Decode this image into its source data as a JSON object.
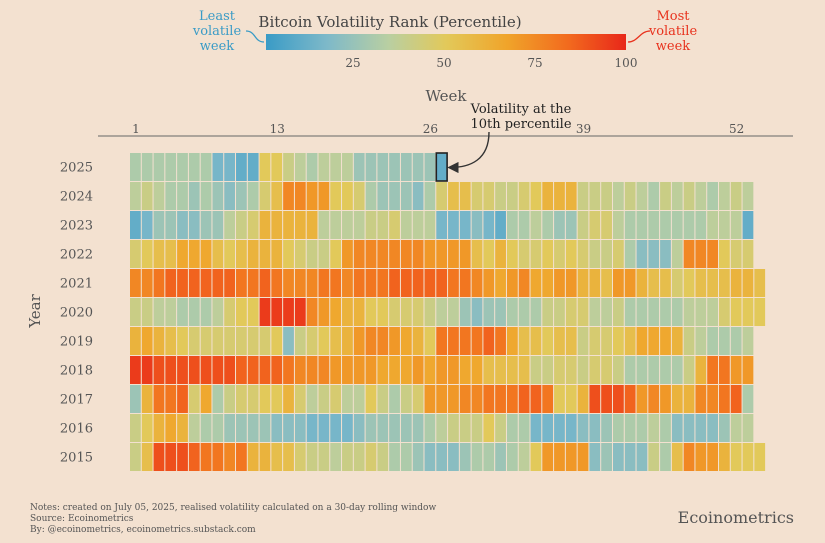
{
  "colors": {
    "background": "#f3e1d0",
    "least_label": "#3a9bc6",
    "most_label": "#e8321d",
    "axis_text": "#555555",
    "cell_border": "#f3e1d0",
    "scale": [
      "#3a9bc6",
      "#7eb9c9",
      "#b9cfa2",
      "#e2c95a",
      "#f0a42a",
      "#f26a1e",
      "#e8271a"
    ]
  },
  "legend": {
    "title": "Bitcoin Volatility Rank (Percentile)",
    "least_label_line1": "Least",
    "least_label_line2": "volatile",
    "least_label_line3": "week",
    "most_label_line1": "Most",
    "most_label_line2": "volatile",
    "most_label_line3": "week",
    "ticks": [
      "25",
      "50",
      "75",
      "100"
    ]
  },
  "annotation": {
    "line1": "Volatility at the",
    "line2": "10th percentile",
    "year": "2025",
    "week": 27
  },
  "footer": {
    "notes": "Notes: created on July 05, 2025, realised volatility calculated on a 30-day rolling window",
    "source": "Source: Ecoinometrics",
    "by": "By: @ecoinometrics, ecoinometrics.substack.com",
    "brand": "Ecoinometrics"
  },
  "chart_data": {
    "type": "heatmap",
    "title": "Bitcoin Volatility Rank (Percentile)",
    "xlabel": "Week",
    "ylabel": "Year",
    "x_tick_labels": [
      "1",
      "13",
      "26",
      "39",
      "52"
    ],
    "x_tick_values": [
      1,
      13,
      26,
      39,
      52
    ],
    "value_range": [
      0,
      100
    ],
    "years": [
      "2025",
      "2024",
      "2023",
      "2022",
      "2021",
      "2020",
      "2019",
      "2018",
      "2017",
      "2016",
      "2015"
    ],
    "weeks_per_year": [
      27,
      53,
      53,
      53,
      54,
      54,
      53,
      53,
      53,
      53,
      54
    ],
    "values": [
      [
        30,
        30,
        30,
        30,
        30,
        30,
        30,
        15,
        15,
        10,
        10,
        50,
        50,
        40,
        35,
        30,
        35,
        35,
        35,
        25,
        25,
        25,
        25,
        25,
        25,
        25,
        10
      ],
      [
        35,
        40,
        35,
        30,
        30,
        25,
        30,
        25,
        20,
        25,
        30,
        45,
        55,
        75,
        75,
        70,
        70,
        50,
        50,
        45,
        30,
        25,
        25,
        25,
        20,
        30,
        45,
        55,
        55,
        45,
        45,
        40,
        40,
        45,
        50,
        60,
        60,
        60,
        40,
        40,
        40,
        35,
        40,
        35,
        30,
        40,
        35,
        40,
        35,
        30,
        35,
        40,
        35
      ],
      [
        10,
        15,
        25,
        25,
        20,
        20,
        25,
        25,
        35,
        40,
        45,
        60,
        60,
        60,
        60,
        60,
        35,
        35,
        35,
        35,
        40,
        40,
        45,
        35,
        35,
        35,
        15,
        15,
        15,
        20,
        15,
        10,
        30,
        30,
        35,
        30,
        25,
        25,
        40,
        45,
        45,
        35,
        30,
        30,
        30,
        30,
        30,
        30,
        30,
        35,
        35,
        35,
        10
      ],
      [
        45,
        50,
        55,
        55,
        65,
        65,
        65,
        55,
        50,
        55,
        60,
        60,
        60,
        50,
        45,
        40,
        40,
        50,
        70,
        75,
        75,
        75,
        75,
        75,
        75,
        70,
        70,
        70,
        70,
        55,
        50,
        60,
        50,
        45,
        45,
        50,
        45,
        50,
        45,
        40,
        40,
        45,
        30,
        20,
        20,
        20,
        35,
        75,
        75,
        75,
        50,
        45,
        45
      ],
      [
        75,
        75,
        80,
        85,
        85,
        85,
        85,
        85,
        85,
        80,
        80,
        85,
        80,
        75,
        75,
        75,
        80,
        80,
        75,
        80,
        80,
        80,
        85,
        85,
        85,
        85,
        85,
        80,
        80,
        75,
        70,
        65,
        70,
        75,
        65,
        65,
        70,
        70,
        60,
        60,
        55,
        70,
        70,
        60,
        55,
        55,
        45,
        50,
        55,
        55,
        55,
        60,
        60,
        55
      ],
      [
        40,
        40,
        35,
        35,
        30,
        30,
        30,
        35,
        45,
        50,
        50,
        95,
        95,
        95,
        95,
        75,
        70,
        65,
        60,
        60,
        50,
        50,
        45,
        45,
        45,
        40,
        35,
        35,
        25,
        20,
        25,
        25,
        30,
        30,
        30,
        40,
        40,
        45,
        45,
        35,
        35,
        40,
        30,
        30,
        30,
        30,
        30,
        35,
        35,
        35,
        45,
        50,
        50,
        50
      ],
      [
        60,
        65,
        60,
        55,
        50,
        45,
        45,
        45,
        45,
        45,
        45,
        45,
        50,
        20,
        40,
        45,
        50,
        55,
        60,
        70,
        75,
        75,
        70,
        65,
        60,
        50,
        80,
        80,
        80,
        80,
        85,
        80,
        65,
        55,
        55,
        50,
        55,
        55,
        40,
        45,
        45,
        50,
        55,
        65,
        65,
        65,
        60,
        40,
        35,
        30,
        30,
        30,
        35
      ],
      [
        95,
        95,
        90,
        90,
        90,
        90,
        90,
        90,
        90,
        85,
        85,
        85,
        85,
        80,
        75,
        75,
        75,
        70,
        70,
        70,
        70,
        65,
        65,
        65,
        70,
        65,
        70,
        70,
        65,
        65,
        55,
        55,
        55,
        55,
        40,
        40,
        45,
        45,
        40,
        45,
        45,
        40,
        30,
        30,
        30,
        30,
        30,
        40,
        60,
        80,
        80,
        70,
        70
      ],
      [
        25,
        60,
        80,
        80,
        85,
        45,
        65,
        30,
        40,
        45,
        45,
        50,
        50,
        60,
        45,
        35,
        40,
        45,
        35,
        35,
        50,
        40,
        30,
        40,
        45,
        70,
        70,
        70,
        75,
        75,
        80,
        80,
        80,
        85,
        85,
        80,
        50,
        50,
        60,
        90,
        90,
        90,
        85,
        70,
        75,
        70,
        60,
        60,
        75,
        75,
        80,
        85,
        30
      ],
      [
        40,
        50,
        60,
        65,
        60,
        35,
        30,
        30,
        25,
        25,
        25,
        25,
        20,
        20,
        20,
        15,
        15,
        15,
        15,
        20,
        25,
        25,
        25,
        25,
        25,
        30,
        35,
        40,
        40,
        40,
        50,
        40,
        30,
        30,
        15,
        15,
        15,
        15,
        20,
        20,
        25,
        30,
        30,
        30,
        35,
        30,
        20,
        20,
        20,
        20,
        25,
        35,
        35
      ],
      [
        40,
        55,
        90,
        90,
        90,
        85,
        80,
        80,
        75,
        80,
        60,
        60,
        55,
        55,
        45,
        40,
        40,
        35,
        40,
        40,
        45,
        40,
        30,
        30,
        25,
        20,
        20,
        20,
        25,
        30,
        30,
        25,
        30,
        35,
        50,
        70,
        70,
        70,
        70,
        20,
        25,
        20,
        20,
        20,
        40,
        30,
        55,
        75,
        70,
        70,
        60,
        50,
        50,
        50
      ]
    ]
  }
}
